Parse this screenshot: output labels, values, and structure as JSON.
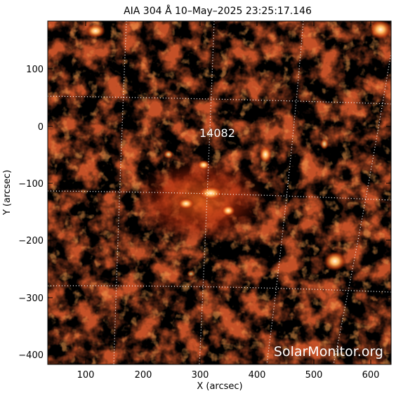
{
  "figure": {
    "title": "AIA 304 Å 10–May–2025 23:25:17.146",
    "xlabel": "X (arcsec)",
    "ylabel": "Y (arcsec)",
    "region_label": "14082",
    "watermark": "SolarMonitor.org"
  },
  "axes": {
    "x_ticks": [
      "100",
      "200",
      "300",
      "400",
      "500",
      "600"
    ],
    "y_ticks": [
      "100",
      "0",
      "−100",
      "−200",
      "−300",
      "−400"
    ]
  },
  "colors": {
    "background": "#000000",
    "plasma_dim": "#5a0a00",
    "plasma_mid": "#a8260a",
    "plasma_bright": "#e8621c",
    "plasma_hot": "#ffd27a",
    "plasma_white": "#fff6da",
    "grid": "#ffffff",
    "frame": "#000000"
  }
}
